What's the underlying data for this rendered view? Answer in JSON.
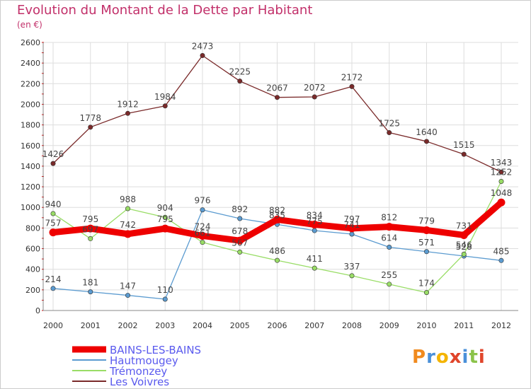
{
  "header": {
    "title": "Evolution du Montant de la Dette par Habitant",
    "unit": "(en €)"
  },
  "logo": {
    "text": "Proxiti",
    "colors": [
      "#f08a1e",
      "#4a90d9",
      "#f4b400",
      "#e0452b",
      "#4a90d9",
      "#8bc34a",
      "#e0452b"
    ]
  },
  "chart_data": {
    "type": "line",
    "title": "Evolution du Montant de la Dette par Habitant",
    "subtitle": "(en €)",
    "xlabel": "",
    "ylabel": "",
    "ylim": [
      0,
      2600
    ],
    "yticks": [
      "0",
      "200",
      "400",
      "600",
      "800",
      "1000",
      "1200",
      "1400",
      "1600",
      "1800",
      "2000",
      "2200",
      "2400",
      "2600"
    ],
    "categories": [
      "2000",
      "2001",
      "2002",
      "2003",
      "2004",
      "2005",
      "2006",
      "2007",
      "2008",
      "2009",
      "2010",
      "2011",
      "2012"
    ],
    "grid": true,
    "legend_position": "bottom-left",
    "series": [
      {
        "name": "BAINS-LES-BAINS",
        "color": "#ee0000",
        "label_color": "#5a5aee",
        "values": [
          757,
          795,
          742,
          795,
          724,
          678,
          882,
          834,
          797,
          812,
          779,
          731,
          1048
        ],
        "labels": [
          "757",
          "795",
          "742",
          "795",
          "724",
          "678",
          "882",
          "834",
          "797",
          "812",
          "779",
          "731",
          "1048"
        ]
      },
      {
        "name": "Hautmougey",
        "color": "#5b9bd0",
        "label_color": "#3a7ec0",
        "values": [
          214,
          181,
          147,
          110,
          976,
          892,
          835,
          775,
          741,
          614,
          571,
          528,
          485
        ],
        "labels": [
          "214",
          "181",
          "147",
          "110",
          "976",
          "892",
          "835",
          "775",
          "741",
          "614",
          "571",
          "528",
          "485"
        ]
      },
      {
        "name": "Trémonzey",
        "color": "#99dd66",
        "label_color": "#66bb33",
        "values": [
          940,
          697,
          988,
          904,
          661,
          567,
          486,
          411,
          337,
          255,
          174,
          546,
          1252
        ],
        "labels": [
          "940",
          "697",
          "988",
          "904",
          "661",
          "567",
          "486",
          "411",
          "337",
          "255",
          "174",
          "546",
          "1252"
        ]
      },
      {
        "name": "Les Voivres",
        "color": "#7a2a2a",
        "label_color": "#7a2a2a",
        "values": [
          1426,
          1778,
          1912,
          1984,
          2473,
          2225,
          2067,
          2072,
          2172,
          1725,
          1640,
          1515,
          1343
        ],
        "labels": [
          "1426",
          "1778",
          "1912",
          "1984",
          "2473",
          "2225",
          "2067",
          "2072",
          "2172",
          "1725",
          "1640",
          "1515",
          "1343"
        ]
      }
    ]
  }
}
